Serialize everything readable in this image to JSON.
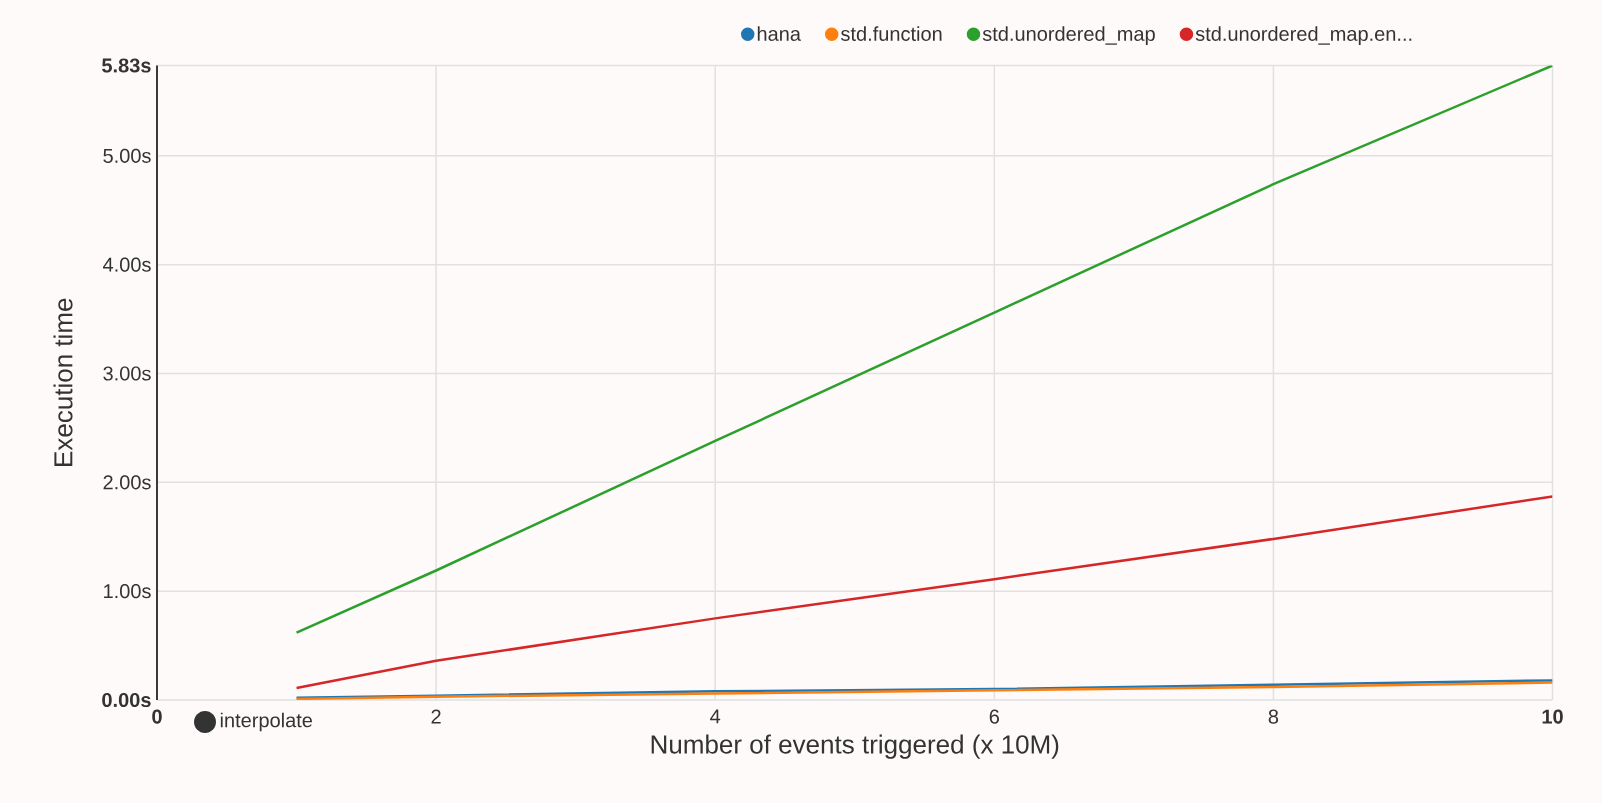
{
  "chart_data": {
    "type": "line",
    "xlabel": "Number of events triggered (x 10M)",
    "ylabel": "Execution time",
    "x": [
      1,
      2,
      4,
      6,
      8,
      10
    ],
    "series": [
      {
        "name": "hana",
        "color": "#1f77b4",
        "values": [
          0.02,
          0.04,
          0.08,
          0.1,
          0.14,
          0.18
        ]
      },
      {
        "name": "std.function",
        "color": "#ff7f0e",
        "values": [
          0.01,
          0.03,
          0.06,
          0.09,
          0.12,
          0.16
        ]
      },
      {
        "name": "std.unordered_map",
        "color": "#2ca02c",
        "values": [
          0.62,
          1.19,
          2.38,
          3.56,
          4.74,
          5.83
        ]
      },
      {
        "name": "std.unordered_map.en...",
        "color": "#d62728",
        "values": [
          0.11,
          0.36,
          0.75,
          1.11,
          1.48,
          1.87
        ]
      }
    ],
    "xlim": [
      0,
      10
    ],
    "ylim": [
      0,
      5.83
    ],
    "xticks": [
      {
        "value": 0,
        "label": "**0**"
      },
      2,
      4,
      6,
      8,
      {
        "value": 10,
        "label": "**10**"
      }
    ],
    "yticks": [
      {
        "value": 0,
        "label": "**0.00s**"
      },
      {
        "value": 1,
        "label": "1.00s"
      },
      {
        "value": 2,
        "label": "2.00s"
      },
      {
        "value": 3,
        "label": "3.00s"
      },
      {
        "value": 4,
        "label": "4.00s"
      },
      {
        "value": 5,
        "label": "5.00s"
      },
      {
        "value": 5.83,
        "label": "**5.83s**"
      }
    ],
    "grid": true,
    "legend": "top",
    "line_style": "solid",
    "annotations": [
      "interpolate"
    ]
  }
}
